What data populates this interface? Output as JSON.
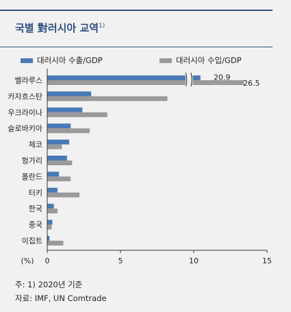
{
  "title": "국별 對러시아 교역",
  "title_sup": "1)",
  "legend": [
    {
      "label": "대러시아 수출/GDP",
      "color": "#4a7ab5"
    },
    {
      "label": "대러시아 수입/GDP",
      "color": "#9a9a9a"
    }
  ],
  "chart_data": {
    "type": "bar",
    "orientation": "horizontal",
    "categories": [
      "벨라루스",
      "카자흐스탄",
      "우크라이나",
      "슬로바키아",
      "체코",
      "헝가리",
      "폴란드",
      "터키",
      "한국",
      "중국",
      "이집트"
    ],
    "series": [
      {
        "name": "대러시아 수출/GDP",
        "color": "#4a7ab5",
        "values": [
          20.9,
          3.0,
          2.4,
          1.6,
          1.5,
          1.35,
          0.8,
          0.7,
          0.45,
          0.35,
          0.15
        ]
      },
      {
        "name": "대러시아 수입/GDP",
        "color": "#9a9a9a",
        "values": [
          26.5,
          8.2,
          4.1,
          2.9,
          1.0,
          1.7,
          1.6,
          2.2,
          0.7,
          0.3,
          1.1
        ]
      }
    ],
    "data_labels": [
      "20.9",
      "26.5"
    ],
    "xlabel": "(%)",
    "xlim": [
      0,
      15
    ],
    "xticks": [
      0,
      5,
      10,
      15
    ],
    "axis_break": true,
    "grid": false
  },
  "footnotes": [
    "주: 1) 2020년 기준",
    "자료: IMF, UN Comtrade"
  ]
}
